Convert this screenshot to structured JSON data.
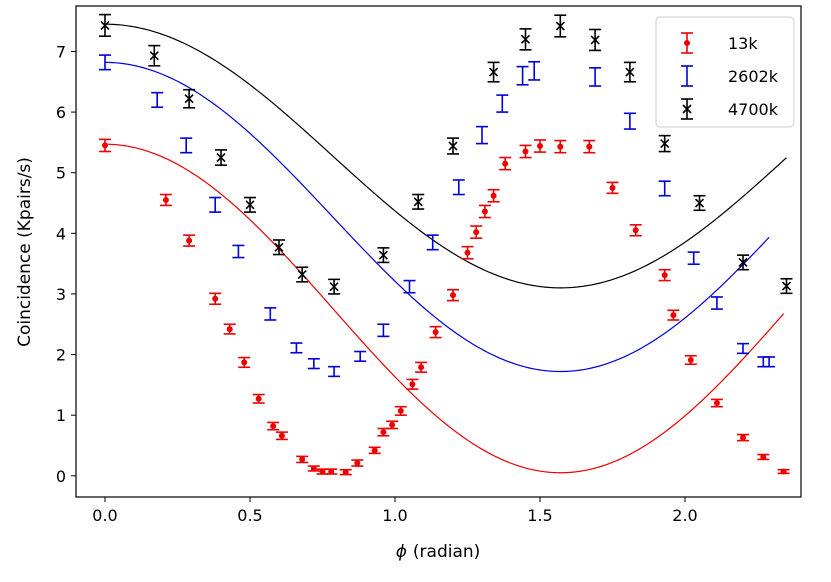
{
  "chart_data": {
    "type": "scatter",
    "xlabel_symbol": "ϕ",
    "xlabel_unit": "(radian)",
    "ylabel": "Coincidence (Kpairs/s)",
    "xlim": [
      -0.1,
      2.4
    ],
    "ylim": [
      -0.35,
      7.75
    ],
    "x_ticks": [
      0.0,
      0.5,
      1.0,
      1.5,
      2.0
    ],
    "x_tick_labels": [
      "0.0",
      "0.5",
      "1.0",
      "1.5",
      "2.0"
    ],
    "y_ticks": [
      0,
      1,
      2,
      3,
      4,
      5,
      6,
      7
    ],
    "y_tick_labels": [
      "0",
      "1",
      "2",
      "3",
      "4",
      "5",
      "6",
      "7"
    ],
    "legend_position": "top-right",
    "series": [
      {
        "name": "13k",
        "color": "#ee0000",
        "marker": "circle",
        "fit": {
          "model": "A*cos^2(x)+C",
          "amplitude": 5.42,
          "offset": 0.05
        },
        "x": [
          0.0,
          0.21,
          0.29,
          0.38,
          0.43,
          0.48,
          0.53,
          0.58,
          0.61,
          0.68,
          0.72,
          0.75,
          0.78,
          0.83,
          0.87,
          0.93,
          0.96,
          0.99,
          1.02,
          1.06,
          1.09,
          1.14,
          1.2,
          1.25,
          1.28,
          1.31,
          1.34,
          1.38,
          1.45,
          1.5,
          1.57,
          1.67,
          1.75,
          1.83,
          1.93,
          1.96,
          2.02,
          2.11,
          2.2,
          2.27,
          2.34
        ],
        "y": [
          5.45,
          4.55,
          3.88,
          2.92,
          2.42,
          1.87,
          1.27,
          0.82,
          0.66,
          0.27,
          0.12,
          0.07,
          0.07,
          0.06,
          0.21,
          0.42,
          0.72,
          0.84,
          1.07,
          1.51,
          1.79,
          2.37,
          2.98,
          3.68,
          4.02,
          4.36,
          4.62,
          5.15,
          5.35,
          5.44,
          5.43,
          5.43,
          4.75,
          4.05,
          3.31,
          2.65,
          1.91,
          1.2,
          0.63,
          0.31,
          0.07
        ],
        "err": [
          0.1,
          0.09,
          0.09,
          0.09,
          0.08,
          0.08,
          0.07,
          0.06,
          0.06,
          0.05,
          0.04,
          0.04,
          0.04,
          0.04,
          0.05,
          0.05,
          0.06,
          0.06,
          0.07,
          0.08,
          0.08,
          0.09,
          0.09,
          0.1,
          0.1,
          0.1,
          0.1,
          0.1,
          0.1,
          0.1,
          0.1,
          0.1,
          0.09,
          0.09,
          0.09,
          0.08,
          0.07,
          0.06,
          0.05,
          0.04,
          0.03
        ]
      },
      {
        "name": "2602k",
        "color": "#0000dd",
        "marker": "none",
        "fit": {
          "model": "A*cos^2(x)+C",
          "amplitude": 5.1,
          "offset": 1.72
        },
        "x": [
          0.0,
          0.18,
          0.28,
          0.38,
          0.46,
          0.57,
          0.66,
          0.72,
          0.79,
          0.88,
          0.96,
          1.05,
          1.13,
          1.22,
          1.3,
          1.37,
          1.44,
          1.48,
          1.69,
          1.81,
          1.93,
          2.03,
          2.11,
          2.2,
          2.27,
          2.29
        ],
        "y": [
          6.82,
          6.2,
          5.45,
          4.47,
          3.7,
          2.67,
          2.11,
          1.85,
          1.72,
          1.97,
          2.4,
          3.12,
          3.85,
          4.76,
          5.62,
          6.14,
          6.6,
          6.68,
          6.58,
          5.85,
          4.74,
          3.59,
          2.85,
          2.1,
          1.88,
          1.88
        ],
        "err": [
          0.12,
          0.12,
          0.12,
          0.12,
          0.1,
          0.1,
          0.08,
          0.08,
          0.08,
          0.08,
          0.1,
          0.1,
          0.12,
          0.12,
          0.14,
          0.14,
          0.15,
          0.15,
          0.15,
          0.13,
          0.12,
          0.1,
          0.1,
          0.08,
          0.08,
          0.08
        ]
      },
      {
        "name": "4700k",
        "color": "#000000",
        "marker": "x",
        "fit": {
          "model": "A*cos^2(x)+C",
          "amplitude": 4.35,
          "offset": 3.1
        },
        "x": [
          0.0,
          0.17,
          0.29,
          0.4,
          0.5,
          0.6,
          0.68,
          0.79,
          0.96,
          1.08,
          1.2,
          1.34,
          1.45,
          1.57,
          1.69,
          1.81,
          1.93,
          2.05,
          2.2,
          2.35
        ],
        "y": [
          7.43,
          6.93,
          6.22,
          5.25,
          4.47,
          3.77,
          3.32,
          3.12,
          3.64,
          4.52,
          5.44,
          6.66,
          7.2,
          7.42,
          7.19,
          6.66,
          5.48,
          4.5,
          3.52,
          3.13
        ]
      }
    ]
  }
}
